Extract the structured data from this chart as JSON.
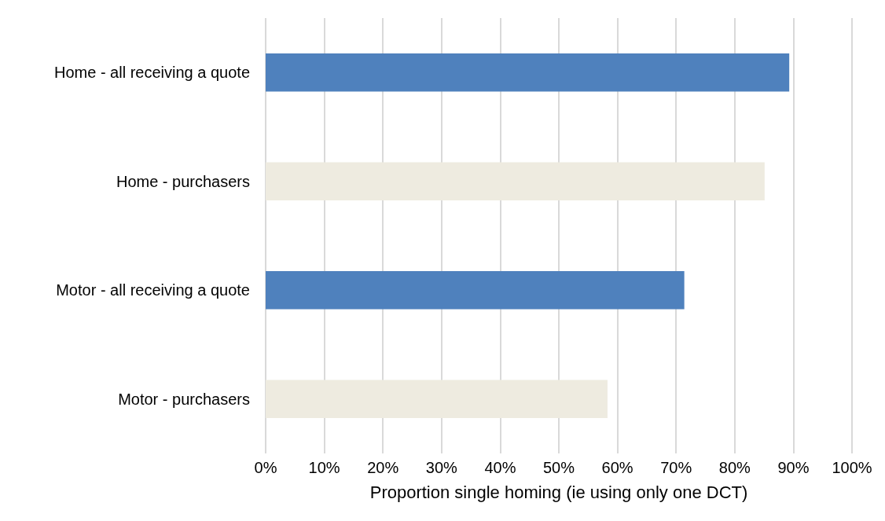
{
  "chart_data": {
    "type": "bar",
    "orientation": "horizontal",
    "xlabel": "Proportion single homing (ie using only one DCT)",
    "categories": [
      "Home - all receiving a quote",
      "Home - purchasers",
      "Motor - all receiving a quote",
      "Motor - purchasers"
    ],
    "values": [
      89.3,
      85.1,
      71.4,
      58.3
    ],
    "colors": [
      "#4f81bd",
      "#eeebe0",
      "#4f81bd",
      "#eeebe0"
    ],
    "xlim": [
      0,
      100
    ],
    "xticks": [
      {
        "value": 0,
        "label": "0%"
      },
      {
        "value": 10,
        "label": "10%"
      },
      {
        "value": 20,
        "label": "20%"
      },
      {
        "value": 30,
        "label": "30%"
      },
      {
        "value": 40,
        "label": "40%"
      },
      {
        "value": 50,
        "label": "50%"
      },
      {
        "value": 60,
        "label": "60%"
      },
      {
        "value": 70,
        "label": "70%"
      },
      {
        "value": 80,
        "label": "80%"
      },
      {
        "value": 90,
        "label": "90%"
      },
      {
        "value": 100,
        "label": "100%"
      }
    ],
    "grid": "x"
  }
}
